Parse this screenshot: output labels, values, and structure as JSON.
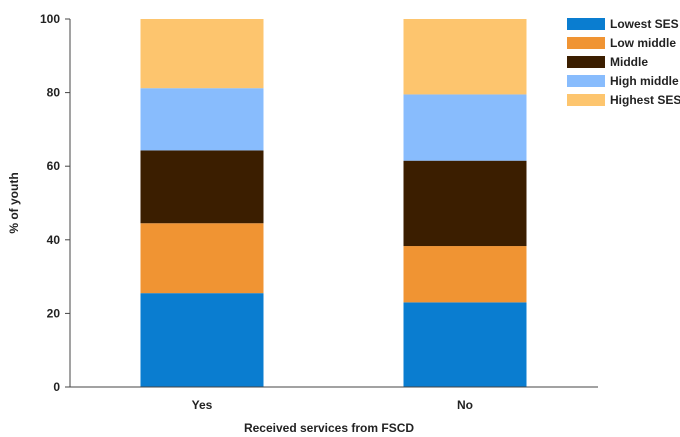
{
  "chart_data": {
    "type": "bar",
    "stacked": true,
    "title": "",
    "xlabel": "Received services from FSCD",
    "ylabel": "% of youth",
    "ylim": [
      0,
      100
    ],
    "yticks": [
      0,
      20,
      40,
      60,
      80,
      100
    ],
    "grid": false,
    "legend_position": "top-right",
    "categories": [
      "Yes",
      "No"
    ],
    "series": [
      {
        "name": "Lowest SES",
        "color": "#0a7dd0",
        "values": [
          25.5,
          23.0
        ]
      },
      {
        "name": "Low middle",
        "color": "#f09433",
        "values": [
          19.0,
          15.3
        ]
      },
      {
        "name": "Middle",
        "color": "#3b1e00",
        "values": [
          19.8,
          23.2
        ]
      },
      {
        "name": "High middle",
        "color": "#88bcfd",
        "values": [
          16.9,
          18.0
        ]
      },
      {
        "name": "Highest SES",
        "color": "#fdc56e",
        "values": [
          18.8,
          20.5
        ]
      }
    ]
  }
}
